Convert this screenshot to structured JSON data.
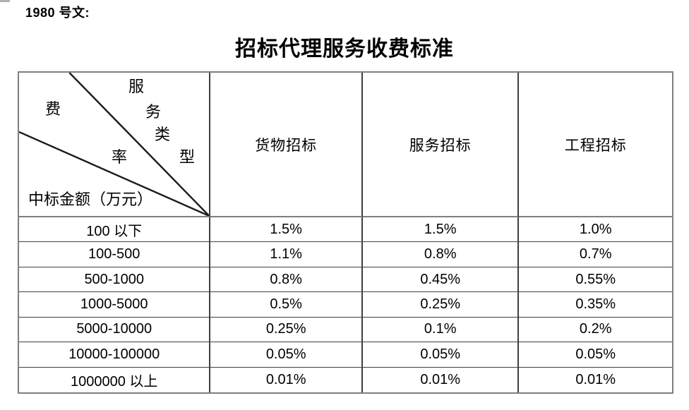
{
  "page": {
    "doc_ref": "1980 号文:",
    "title": "招标代理服务收费标准"
  },
  "table": {
    "corner": {
      "service_type_chars": [
        "服",
        "务",
        "类",
        "型"
      ],
      "fee_rate_chars": [
        "费",
        "率"
      ],
      "row_axis_label": "中标金额（万元）"
    },
    "columns": [
      "货物招标",
      "服务招标",
      "工程招标"
    ],
    "rows": [
      {
        "range": "100 以下",
        "values": [
          "1.5%",
          "1.5%",
          "1.0%"
        ]
      },
      {
        "range": "100-500",
        "values": [
          "1.1%",
          "0.8%",
          "0.7%"
        ]
      },
      {
        "range": "500-1000",
        "values": [
          "0.8%",
          "0.45%",
          "0.55%"
        ]
      },
      {
        "range": "1000-5000",
        "values": [
          "0.5%",
          "0.25%",
          "0.35%"
        ]
      },
      {
        "range": "5000-10000",
        "values": [
          "0.25%",
          "0.1%",
          "0.2%"
        ]
      },
      {
        "range": "10000-100000",
        "values": [
          "0.05%",
          "0.05%",
          "0.05%"
        ]
      },
      {
        "range": "1000000 以上",
        "values": [
          "0.01%",
          "0.01%",
          "0.01%"
        ]
      }
    ],
    "colors": {
      "text": "#000000",
      "border_outer": "#7f7f7f",
      "border_inner": "#3f3f3f",
      "diagonal_line": "#1a1a1a"
    }
  },
  "chart_data": {
    "type": "table",
    "title": "招标代理服务收费标准",
    "row_axis_label": "中标金额（万元）",
    "col_axis_label": "服务类型",
    "cell_metric": "费率",
    "columns": [
      "货物招标",
      "服务招标",
      "工程招标"
    ],
    "rows": [
      "100 以下",
      "100-500",
      "500-1000",
      "1000-5000",
      "5000-10000",
      "10000-100000",
      "1000000 以上"
    ],
    "values": [
      [
        "1.5%",
        "1.5%",
        "1.0%"
      ],
      [
        "1.1%",
        "0.8%",
        "0.7%"
      ],
      [
        "0.8%",
        "0.45%",
        "0.55%"
      ],
      [
        "0.5%",
        "0.25%",
        "0.35%"
      ],
      [
        "0.25%",
        "0.1%",
        "0.2%"
      ],
      [
        "0.05%",
        "0.05%",
        "0.05%"
      ],
      [
        "0.01%",
        "0.01%",
        "0.01%"
      ]
    ]
  }
}
